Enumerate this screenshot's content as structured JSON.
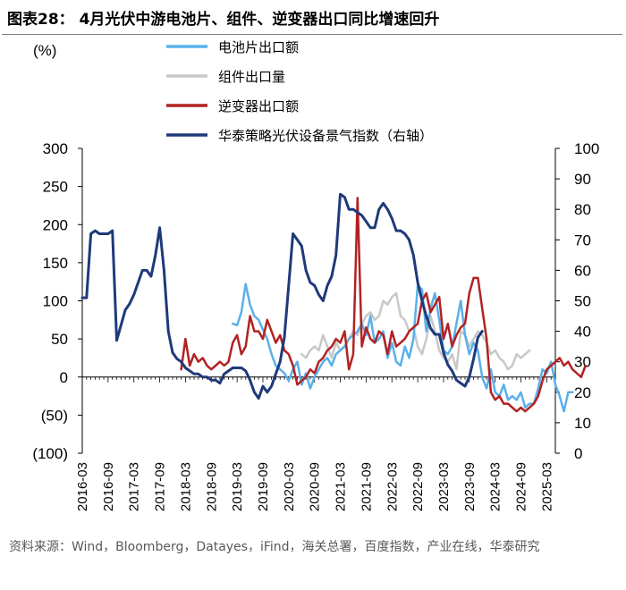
{
  "title": "图表28： 4月光伏中游电池片、组件、逆变器出口同比增速回升",
  "source": "资料来源：Wind，Bloomberg，Datayes，iFind，海关总署，百度指数，产业在线，华泰研究",
  "colors": {
    "cell": "#5ab0ea",
    "module": "#c8c8c8",
    "inverter": "#b22222",
    "index": "#1f3a7a",
    "axis": "#000000"
  },
  "chart_data": {
    "type": "line",
    "y_unit_label": "(%)",
    "left_axis": {
      "min": -100,
      "max": 300,
      "ticks": [
        -100,
        -50,
        0,
        50,
        100,
        150,
        200,
        250,
        300
      ],
      "tick_labels": [
        "(100)",
        "(50)",
        "0",
        "50",
        "100",
        "150",
        "200",
        "250",
        "300"
      ]
    },
    "right_axis": {
      "min": 0,
      "max": 100,
      "ticks": [
        0,
        10,
        20,
        30,
        40,
        50,
        60,
        70,
        80,
        90,
        100
      ],
      "tick_labels": [
        "0",
        "10",
        "20",
        "30",
        "40",
        "50",
        "60",
        "70",
        "80",
        "90",
        "100"
      ]
    },
    "x_tick_labels": [
      "2016-03",
      "2016-09",
      "2017-03",
      "2017-09",
      "2018-03",
      "2018-09",
      "2019-03",
      "2019-09",
      "2020-03",
      "2020-09",
      "2021-03",
      "2021-09",
      "2022-03",
      "2022-09",
      "2023-03",
      "2023-09",
      "2024-03",
      "2024-09",
      "2025-03"
    ],
    "x_start": "2016-03",
    "series": [
      {
        "name": "电池片出口额",
        "key": "cell",
        "axis": "left",
        "start": "2019-02",
        "values": [
          70,
          68,
          85,
          122,
          95,
          80,
          75,
          62,
          50,
          30,
          15,
          10,
          5,
          -5,
          10,
          20,
          -10,
          5,
          -15,
          0,
          10,
          20,
          25,
          15,
          30,
          35,
          40,
          50,
          55,
          60,
          70,
          55,
          80,
          45,
          50,
          60,
          25,
          45,
          20,
          15,
          40,
          25,
          50,
          120,
          115,
          60,
          90,
          110,
          75,
          35,
          30,
          40,
          70,
          100,
          55,
          30,
          45,
          35,
          0,
          -15,
          10,
          -20,
          -25,
          -10,
          -30,
          -25,
          -30,
          -20,
          -40,
          -35,
          -35,
          -15,
          10,
          5,
          20,
          -10,
          -25,
          -45,
          -20,
          -20
        ]
      },
      {
        "name": "组件出口量",
        "key": "module",
        "axis": "left",
        "start": "2020-06",
        "values": [
          30,
          25,
          35,
          40,
          35,
          55,
          40,
          25,
          45,
          35,
          40,
          50,
          60,
          55,
          70,
          80,
          85,
          75,
          80,
          100,
          95,
          105,
          110,
          80,
          75,
          60,
          65,
          40,
          30,
          50,
          80,
          60,
          35,
          25,
          20,
          30,
          10,
          60,
          55,
          40,
          50,
          60,
          55,
          45,
          30,
          35,
          25,
          20,
          10,
          15,
          30,
          25,
          30,
          35
        ]
      },
      {
        "name": "逆变器出口额",
        "key": "inverter",
        "axis": "left",
        "start": "2018-02",
        "values": [
          10,
          50,
          15,
          30,
          20,
          25,
          15,
          10,
          15,
          20,
          15,
          20,
          45,
          55,
          30,
          40,
          80,
          60,
          60,
          50,
          75,
          60,
          45,
          55,
          35,
          30,
          15,
          -10,
          -5,
          0,
          10,
          5,
          20,
          25,
          35,
          40,
          50,
          45,
          60,
          10,
          30,
          235,
          40,
          65,
          50,
          45,
          60,
          55,
          30,
          60,
          40,
          45,
          50,
          60,
          65,
          70,
          100,
          110,
          85,
          95,
          105,
          50,
          70,
          40,
          55,
          65,
          70,
          110,
          130,
          130,
          90,
          50,
          -20,
          -30,
          -25,
          -35,
          -35,
          -40,
          -45,
          -40,
          -45,
          -40,
          -35,
          -25,
          -5,
          10,
          15,
          20,
          25,
          15,
          20,
          10,
          5,
          0,
          15
        ]
      },
      {
        "name": "华泰策略光伏设备景气指数（右轴）",
        "key": "index",
        "axis": "right",
        "start": "2016-03",
        "values": [
          51,
          51,
          72,
          73,
          72,
          72,
          72,
          73,
          37,
          42,
          47,
          49,
          52,
          56,
          60,
          60,
          58,
          65,
          74,
          60,
          40,
          33,
          31,
          30,
          28,
          27,
          26,
          26,
          25,
          25,
          24,
          24,
          23,
          26,
          27,
          28,
          28,
          28,
          27,
          24,
          20,
          18,
          22,
          20,
          22,
          26,
          30,
          38,
          55,
          72,
          70,
          68,
          60,
          56,
          55,
          52,
          50,
          55,
          58,
          65,
          85,
          84,
          80,
          80,
          79,
          78,
          76,
          74,
          74,
          80,
          82,
          80,
          77,
          73,
          73,
          72,
          70,
          65,
          56,
          50,
          45,
          41,
          39,
          39,
          33,
          29,
          27,
          24,
          23,
          22,
          25,
          31,
          38,
          40
        ]
      }
    ]
  }
}
